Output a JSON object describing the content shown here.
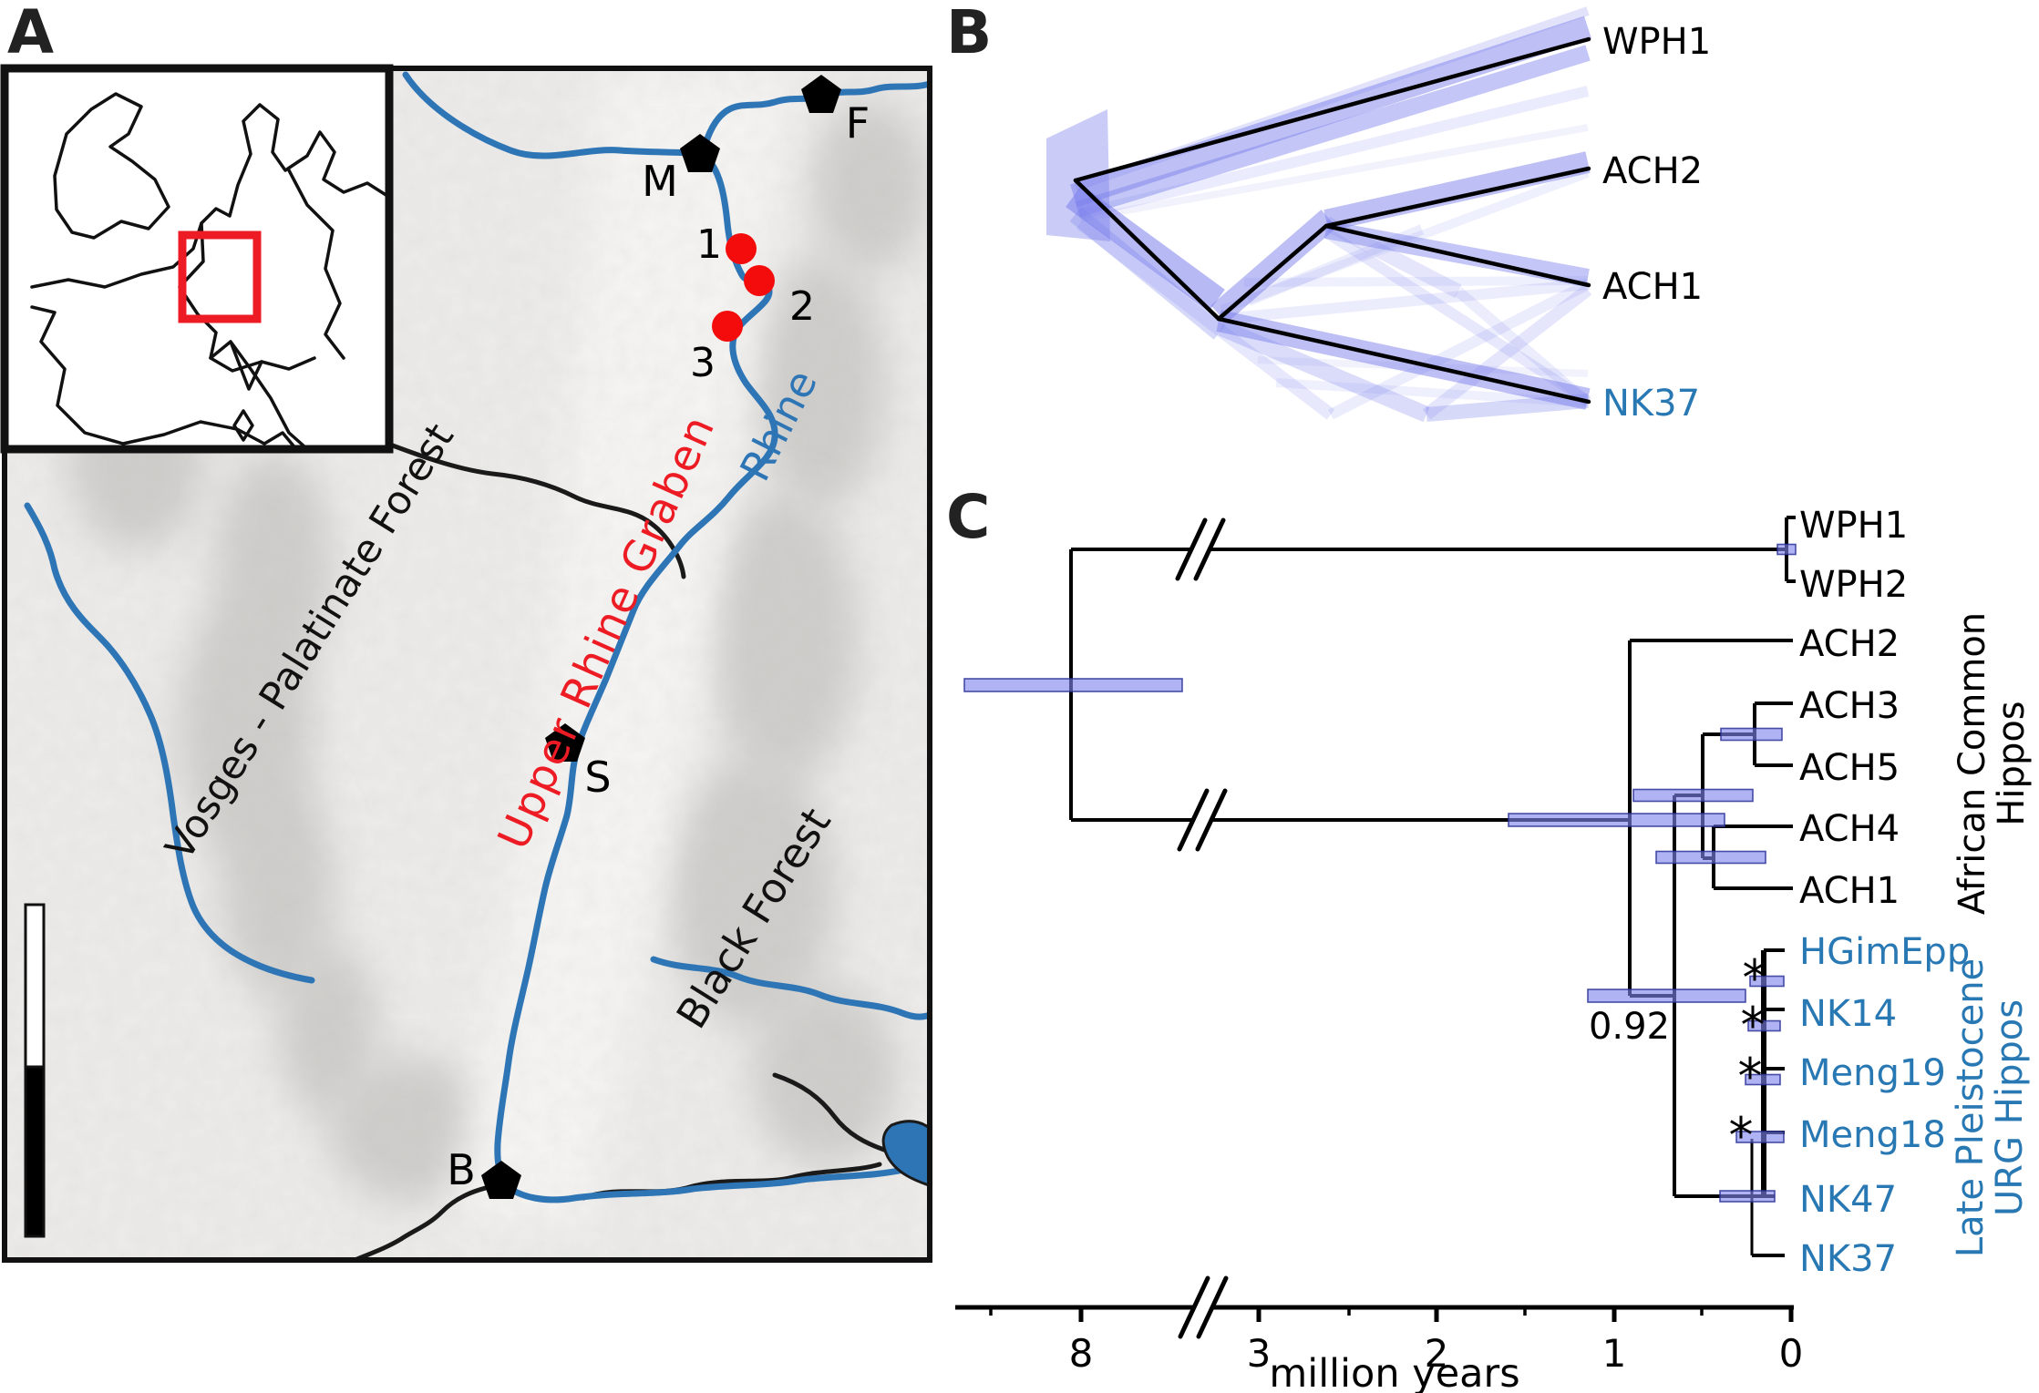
{
  "figure": {
    "panel_labels": {
      "a": "A",
      "b": "B",
      "c": "C"
    }
  },
  "map": {
    "labels": {
      "vosges": "Vosges - Palatinate Forest",
      "graben": "Upper Rhine Graben",
      "rhine": "Rhine",
      "black_forest": "Black Forest"
    },
    "cities": [
      {
        "label": "M"
      },
      {
        "label": "F"
      },
      {
        "label": "S"
      },
      {
        "label": "B"
      }
    ],
    "sites": [
      {
        "label": "1"
      },
      {
        "label": "2"
      },
      {
        "label": "3"
      }
    ],
    "colors": {
      "river": "#2e75b6",
      "red": "#ed1c24",
      "site_red": "#f40b0b",
      "land": "#edecea",
      "border": "#1a1a1a"
    }
  },
  "chart_data": [
    {
      "type": "densitree",
      "panel": "B",
      "tips": [
        {
          "label": "WPH1",
          "color": "#000000"
        },
        {
          "label": "ACH2",
          "color": "#000000"
        },
        {
          "label": "ACH1",
          "color": "#000000"
        },
        {
          "label": "NK37",
          "color": "#2878b4"
        }
      ],
      "consensus_topology": "(WPH1,((ACH2,ACH1),NK37))",
      "cloud_color": "#7b80ec",
      "consensus_color": "#000000"
    },
    {
      "type": "time_tree",
      "panel": "C",
      "taxa": [
        {
          "label": "WPH1",
          "color": "#000000"
        },
        {
          "label": "WPH2",
          "color": "#000000"
        },
        {
          "label": "ACH2",
          "color": "#000000"
        },
        {
          "label": "ACH3",
          "color": "#000000"
        },
        {
          "label": "ACH5",
          "color": "#000000"
        },
        {
          "label": "ACH4",
          "color": "#000000"
        },
        {
          "label": "ACH1",
          "color": "#000000"
        },
        {
          "label": "HGimEpp",
          "color": "#2878b4"
        },
        {
          "label": "NK14",
          "color": "#2878b4"
        },
        {
          "label": "Meng19",
          "color": "#2878b4"
        },
        {
          "label": "Meng18",
          "color": "#2878b4"
        },
        {
          "label": "NK47",
          "color": "#2878b4"
        },
        {
          "label": "NK37",
          "color": "#2878b4"
        }
      ],
      "clade_labels": [
        {
          "lines": [
            "African Common",
            "Hippos"
          ],
          "color": "#000000"
        },
        {
          "lines": [
            "Late Pleistocene",
            "URG Hippos"
          ],
          "color": "#2878b4"
        }
      ],
      "node_support_label": "0.92",
      "support_marker": "*",
      "supported_node_count": 4,
      "hpd_bar_fill": "rgba(126,133,235,0.62)",
      "hpd_bar_edge": "rgba(45,50,150,0.85)",
      "axis": {
        "label": "million years",
        "major_ticks": [
          "8",
          "3",
          "2",
          "1",
          "0"
        ],
        "has_break": true
      }
    }
  ]
}
